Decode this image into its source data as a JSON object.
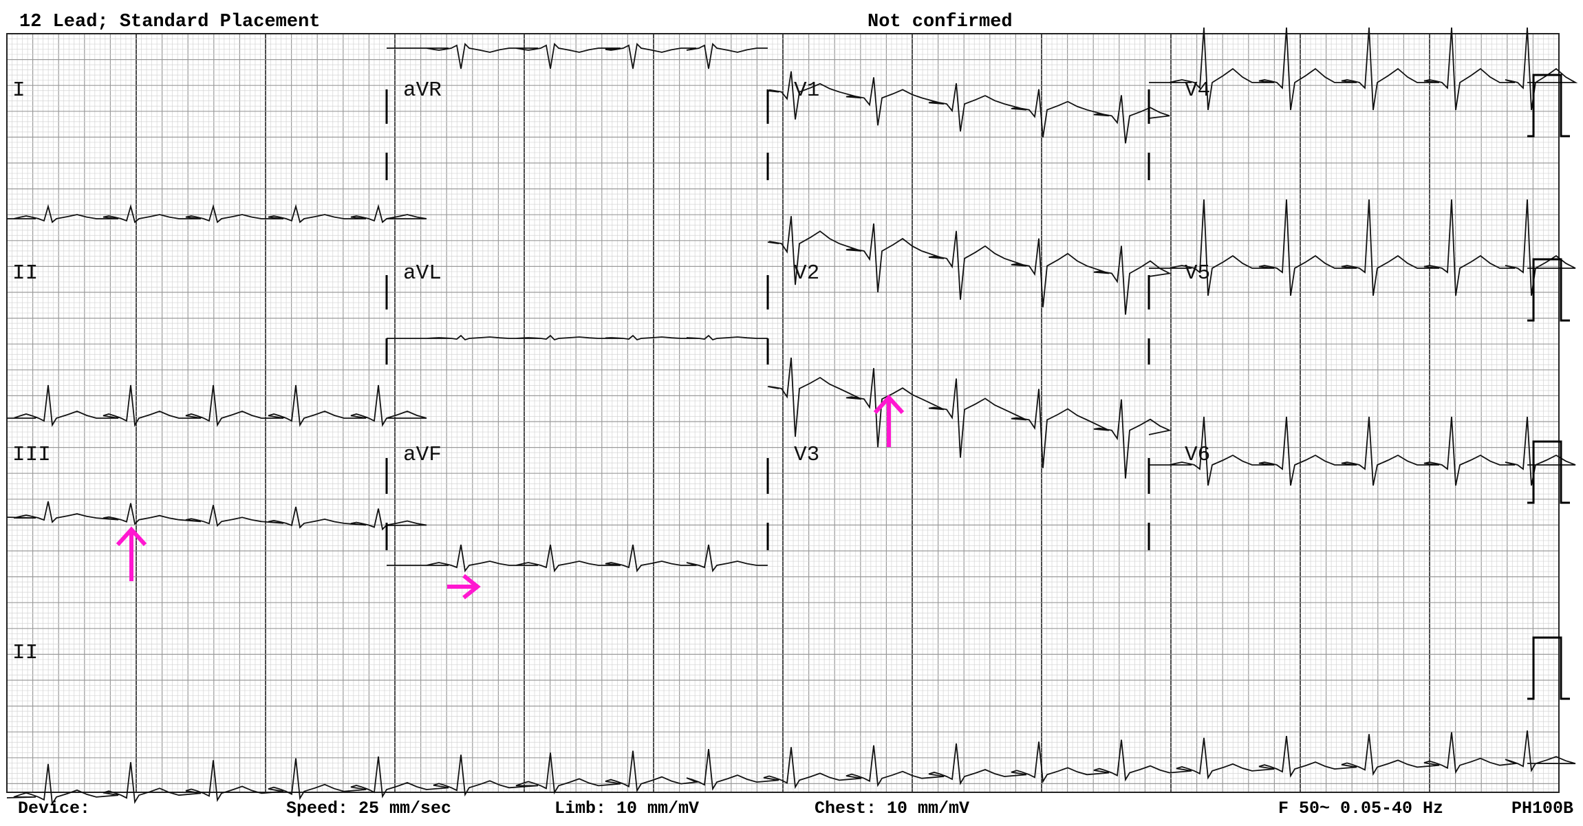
{
  "header": {
    "title": "12 Lead; Standard Placement",
    "status": "Not confirmed"
  },
  "leads": {
    "I": "I",
    "II": "II",
    "III": "III",
    "aVR": "aVR",
    "aVL": "aVL",
    "aVF": "aVF",
    "V1": "V1",
    "V2": "V2",
    "V3": "V3",
    "V4": "V4",
    "V5": "V5",
    "V6": "V6",
    "rhythm": "II"
  },
  "footer": {
    "device": "Device:",
    "speed": "Speed: 25 mm/sec",
    "limb": "Limb: 10 mm/mV",
    "chest": "Chest: 10 mm/mV",
    "filter": "F 50~ 0.05-40 Hz",
    "model": "PH100B"
  },
  "colors": {
    "grid_minor": "#d4d4d4",
    "grid_major": "#9a9a9a",
    "grid_heavy": "#4a4a4a",
    "trace": "#111111",
    "arrow": "#ff17d0"
  },
  "icons": [
    "arrow-up-icon",
    "arrow-right-icon",
    "arrow-up-icon"
  ]
}
